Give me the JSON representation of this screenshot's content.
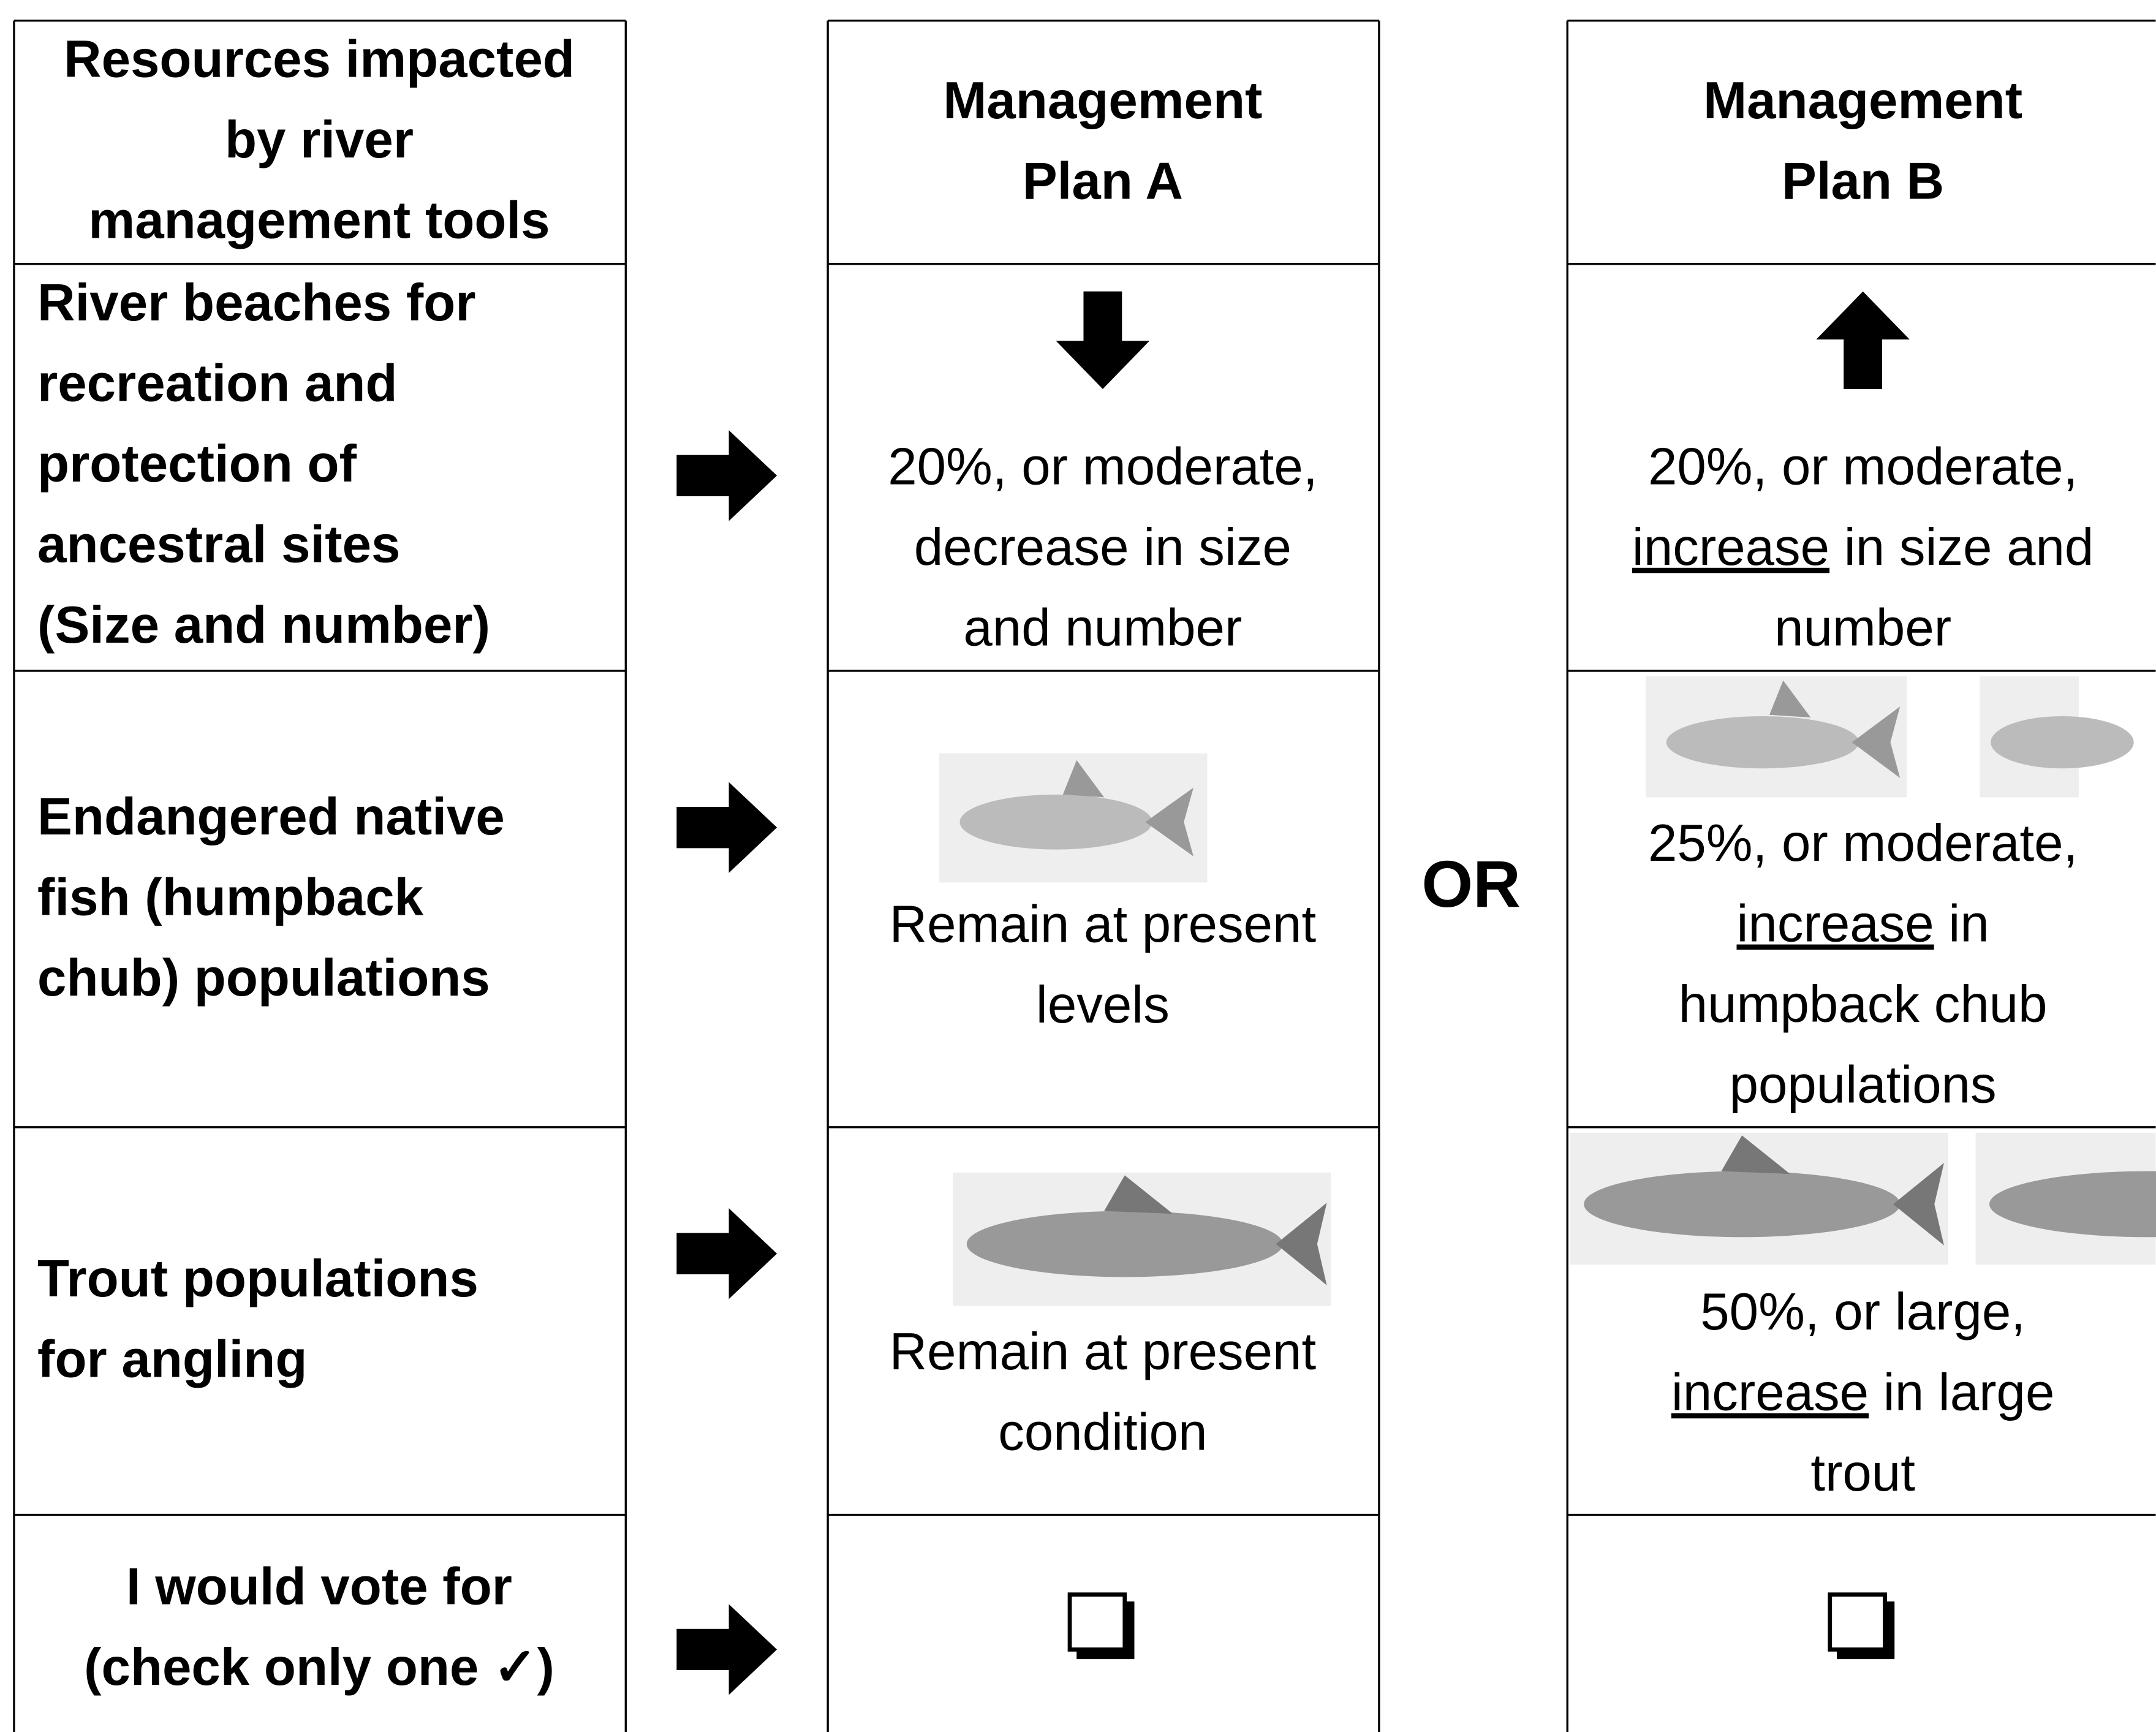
{
  "header": {
    "resources": [
      "Resources impacted",
      "by river",
      "management tools"
    ],
    "plan_a": [
      "Management",
      "Plan A"
    ],
    "plan_b": [
      "Management",
      "Plan B"
    ]
  },
  "separator": "OR",
  "underline_word": "increase",
  "rows": [
    {
      "resource": [
        "River beaches for",
        "recreation and",
        "protection of",
        "ancestral sites",
        "(Size and number)"
      ],
      "plan_a": [
        [
          "20%, or moderate,"
        ],
        [
          "decrease in size"
        ],
        [
          "and number"
        ]
      ],
      "plan_b": [
        [
          "20%, or moderate,"
        ],
        [
          "increase",
          " in size and"
        ],
        [
          "number"
        ]
      ]
    },
    {
      "resource": [
        "Endangered native",
        "fish (humpback",
        "chub) populations"
      ],
      "plan_a": [
        [
          "Remain at present"
        ],
        [
          "levels"
        ]
      ],
      "plan_b": [
        [
          "25%, or moderate,"
        ],
        [
          "increase",
          " in"
        ],
        [
          "humpback chub"
        ],
        [
          "populations"
        ]
      ]
    },
    {
      "resource": [
        "Trout populations",
        "for angling"
      ],
      "plan_a": [
        [
          "Remain at present"
        ],
        [
          "condition"
        ]
      ],
      "plan_b": [
        [
          "50%, or large,"
        ],
        [
          "increase",
          " in large"
        ],
        [
          "trout"
        ]
      ]
    }
  ],
  "vote": [
    "I would vote for",
    "(check only one ✓)"
  ]
}
